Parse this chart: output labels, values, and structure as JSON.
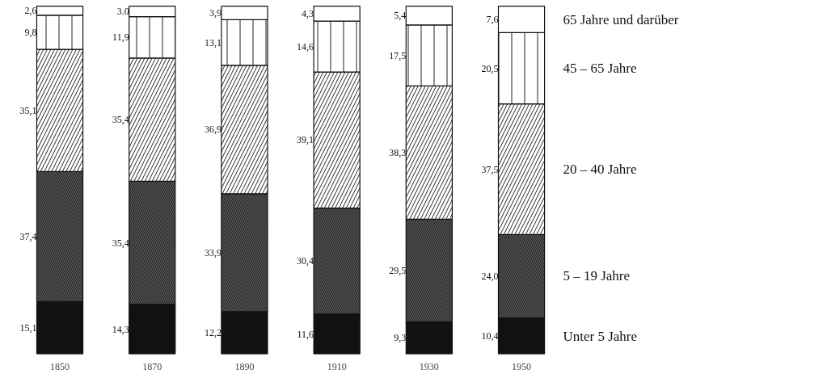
{
  "chart_data": {
    "type": "bar",
    "stacked": true,
    "categories": [
      "1850",
      "1870",
      "1890",
      "1910",
      "1930",
      "1950"
    ],
    "series": [
      {
        "name": "Unter 5 Jahre",
        "color": "#111111",
        "values": [
          15.1,
          14.3,
          12.2,
          11.6,
          9.3,
          10.4
        ],
        "value_labels": [
          "15,1",
          "14,3",
          "12,2",
          "11,6",
          "9,3",
          "10,4"
        ]
      },
      {
        "name": "5 – 19 Jahre",
        "color": "#555555",
        "values": [
          37.4,
          35.4,
          33.9,
          30.4,
          29.5,
          24.0
        ],
        "value_labels": [
          "37,4",
          "35,4",
          "33,9",
          "30,4",
          "29,5",
          "24,0"
        ]
      },
      {
        "name": "20 – 40 Jahre",
        "color": "#ffffff",
        "values": [
          35.1,
          35.4,
          36.9,
          39.1,
          38.3,
          37.5
        ],
        "value_labels": [
          "35,1",
          "35,4",
          "36,9",
          "39,1",
          "38,3",
          "37,5"
        ]
      },
      {
        "name": "45 – 65 Jahre",
        "color": "#ffffff",
        "values": [
          9.8,
          11.9,
          13.1,
          14.6,
          17.5,
          20.5
        ],
        "value_labels": [
          "9,8",
          "11,9",
          "13,1",
          "14,6",
          "17,5",
          "20,5"
        ]
      },
      {
        "name": "65 Jahre und darüber",
        "color": "#ffffff",
        "values": [
          2.6,
          3.0,
          3.9,
          4.3,
          5.4,
          7.6
        ],
        "value_labels": [
          "2,6",
          "3.0",
          "3,9",
          "4,3",
          "5,4",
          "7,6"
        ]
      }
    ],
    "legend": "right",
    "tick_labels": "x"
  }
}
